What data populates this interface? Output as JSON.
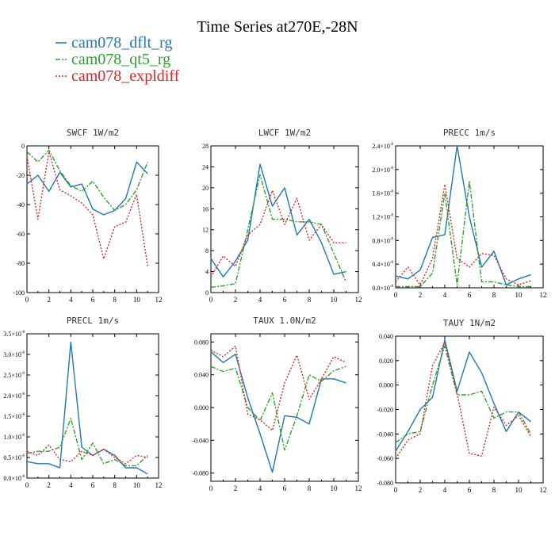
{
  "figure": {
    "title": "Time Series at270E,-28N",
    "legend": [
      {
        "name": "cam078_dflt_rg",
        "color": "#1f77b4",
        "dash": "solid"
      },
      {
        "name": "cam078_qt5_rg",
        "color": "#2ca02c",
        "dash": "dashdot"
      },
      {
        "name": "cam078_expldiff",
        "color": "#d62728",
        "dash": "dotted"
      }
    ]
  },
  "chart_data": [
    {
      "type": "line",
      "title": "SWCF   1W/m2",
      "x": [
        0,
        1,
        2,
        3,
        4,
        5,
        6,
        7,
        8,
        9,
        10,
        11
      ],
      "xlim": [
        0,
        12
      ],
      "xticks": [
        "0",
        "2",
        "4",
        "6",
        "8",
        "10",
        "12"
      ],
      "ylim": [
        -100,
        0
      ],
      "yticks": [
        {
          "value": -100,
          "label": "-100"
        },
        {
          "value": -80,
          "label": "-80"
        },
        {
          "value": -60,
          "label": "-60"
        },
        {
          "value": -40,
          "label": "-40"
        },
        {
          "value": -20,
          "label": "-20"
        },
        {
          "value": 0,
          "label": "0"
        }
      ],
      "series": [
        {
          "name": "cam078_dflt_rg",
          "values": [
            -26,
            -20,
            -31,
            -18,
            -28,
            -26,
            -43,
            -47,
            -44,
            -36,
            -11,
            -19
          ]
        },
        {
          "name": "cam078_qt5_rg",
          "values": [
            -4,
            -11,
            -3,
            -17,
            -27,
            -31,
            -24,
            -35,
            -44,
            -40,
            -30,
            -11
          ]
        },
        {
          "name": "cam078_expldiff",
          "values": [
            -7,
            -50,
            -4,
            -30,
            -34,
            -39,
            -47,
            -77,
            -55,
            -52,
            -33,
            -82
          ]
        }
      ]
    },
    {
      "type": "line",
      "title": "LWCF   1W/m2",
      "x": [
        0,
        1,
        2,
        3,
        4,
        5,
        6,
        7,
        8,
        9,
        10,
        11
      ],
      "xlim": [
        0,
        12
      ],
      "xticks": [
        "0",
        "2",
        "4",
        "6",
        "8",
        "10",
        "12"
      ],
      "ylim": [
        0,
        28
      ],
      "yticks": [
        {
          "value": 0,
          "label": "0"
        },
        {
          "value": 4,
          "label": "4"
        },
        {
          "value": 8,
          "label": "8"
        },
        {
          "value": 12,
          "label": "12"
        },
        {
          "value": 16,
          "label": "16"
        },
        {
          "value": 20,
          "label": "20"
        },
        {
          "value": 24,
          "label": "24"
        },
        {
          "value": 28,
          "label": "28"
        }
      ],
      "series": [
        {
          "name": "cam078_dflt_rg",
          "values": [
            6.5,
            3,
            6,
            10,
            24.5,
            16.5,
            20,
            11,
            14,
            9.5,
            3.5,
            4
          ]
        },
        {
          "name": "cam078_qt5_rg",
          "values": [
            1,
            1.3,
            1.7,
            12,
            22.5,
            14,
            14,
            13.5,
            13.5,
            13,
            7.5,
            2
          ]
        },
        {
          "name": "cam078_expldiff",
          "values": [
            3,
            7,
            5,
            11,
            13,
            19.5,
            13,
            18,
            10,
            13,
            9.5,
            9.5
          ]
        }
      ]
    },
    {
      "type": "line",
      "title": "PRECC   1m/s",
      "x": [
        0,
        1,
        2,
        3,
        4,
        5,
        6,
        7,
        8,
        9,
        10,
        11
      ],
      "xlim": [
        0,
        12
      ],
      "xticks": [
        "0",
        "2",
        "4",
        "6",
        "8",
        "10",
        "12"
      ],
      "ylim": [
        0,
        2.4
      ],
      "yticks": [
        {
          "value": 0,
          "label": "0.0×10",
          "exp": "-8"
        },
        {
          "value": 0.4,
          "label": "0.4×10",
          "exp": "-8"
        },
        {
          "value": 0.8,
          "label": "0.8×10",
          "exp": "-8"
        },
        {
          "value": 1.2,
          "label": "1.2×10",
          "exp": "-8"
        },
        {
          "value": 1.6,
          "label": "1.6×10",
          "exp": "-8"
        },
        {
          "value": 2.0,
          "label": "2.0×10",
          "exp": "-8"
        },
        {
          "value": 2.4,
          "label": "2.4×10",
          "exp": "-8"
        }
      ],
      "series": [
        {
          "name": "cam078_dflt_rg",
          "values": [
            0.2,
            0.15,
            0.3,
            0.85,
            0.9,
            2.4,
            1.2,
            0.35,
            0.62,
            0.05,
            0.15,
            0.22
          ]
        },
        {
          "name": "cam078_qt5_rg",
          "values": [
            0.02,
            0.02,
            0.02,
            0.25,
            1.6,
            0.05,
            1.8,
            0.1,
            0.1,
            0.05,
            0.02,
            0.02
          ]
        },
        {
          "name": "cam078_expldiff",
          "values": [
            0.1,
            0.35,
            0.05,
            0.5,
            1.75,
            0.5,
            0.35,
            0.58,
            0.55,
            0.15,
            0.05,
            0.12
          ]
        }
      ]
    },
    {
      "type": "line",
      "title": "PRECL   1m/s",
      "x": [
        0,
        1,
        2,
        3,
        4,
        5,
        6,
        7,
        8,
        9,
        10,
        11
      ],
      "xlim": [
        0,
        12
      ],
      "xticks": [
        "0",
        "2",
        "4",
        "6",
        "8",
        "10",
        "12"
      ],
      "ylim": [
        0,
        3.5
      ],
      "yticks": [
        {
          "value": 0,
          "label": "0.0×10",
          "exp": "-8"
        },
        {
          "value": 0.5,
          "label": "0.5×10",
          "exp": "-8"
        },
        {
          "value": 1.0,
          "label": "1.0×10",
          "exp": "-8"
        },
        {
          "value": 1.5,
          "label": "1.5×10",
          "exp": "-8"
        },
        {
          "value": 2.0,
          "label": "2.0×10",
          "exp": "-8"
        },
        {
          "value": 2.5,
          "label": "2.5×10",
          "exp": "-8"
        },
        {
          "value": 3.0,
          "label": "3.0×10",
          "exp": "-8"
        },
        {
          "value": 3.5,
          "label": "3.5×10",
          "exp": "-8"
        }
      ],
      "series": [
        {
          "name": "cam078_dflt_rg",
          "values": [
            0.4,
            0.35,
            0.35,
            0.25,
            3.3,
            0.75,
            0.55,
            0.7,
            0.55,
            0.25,
            0.25,
            0.1
          ]
        },
        {
          "name": "cam078_qt5_rg",
          "values": [
            0.6,
            0.65,
            0.65,
            0.75,
            1.45,
            0.45,
            0.85,
            0.35,
            0.45,
            0.3,
            0.3,
            0.55
          ]
        },
        {
          "name": "cam078_expldiff",
          "values": [
            0.65,
            0.55,
            0.8,
            0.45,
            0.4,
            0.65,
            0.55,
            0.7,
            0.5,
            0.35,
            0.55,
            0.5
          ]
        }
      ]
    },
    {
      "type": "line",
      "title": "TAUX   1.0N/m2",
      "x": [
        0,
        1,
        2,
        3,
        4,
        5,
        6,
        7,
        8,
        9,
        10,
        11
      ],
      "xlim": [
        0,
        12
      ],
      "xticks": [
        "0",
        "2",
        "4",
        "6",
        "8",
        "10",
        "12"
      ],
      "ylim": [
        -0.09,
        0.09
      ],
      "yticks": [
        {
          "value": -0.08,
          "label": "-0.080"
        },
        {
          "value": -0.04,
          "label": "-0.040"
        },
        {
          "value": 0.0,
          "label": "0.000"
        },
        {
          "value": 0.04,
          "label": "0.040"
        },
        {
          "value": 0.08,
          "label": "0.080"
        }
      ],
      "series": [
        {
          "name": "cam078_dflt_rg",
          "values": [
            0.068,
            0.055,
            0.065,
            0.012,
            -0.032,
            -0.079,
            -0.01,
            -0.012,
            -0.02,
            0.035,
            0.035,
            0.03
          ]
        },
        {
          "name": "cam078_qt5_rg",
          "values": [
            0.05,
            0.044,
            0.048,
            0.0,
            -0.016,
            0.018,
            -0.052,
            -0.01,
            0.04,
            0.032,
            0.045,
            0.05
          ]
        },
        {
          "name": "cam078_expldiff",
          "values": [
            0.07,
            0.062,
            0.075,
            -0.008,
            -0.015,
            -0.028,
            0.03,
            0.064,
            0.01,
            0.035,
            0.062,
            0.055
          ]
        }
      ]
    },
    {
      "type": "line",
      "title": "TAUY   1N/m2",
      "x": [
        0,
        1,
        2,
        3,
        4,
        5,
        6,
        7,
        8,
        9,
        10,
        11
      ],
      "xlim": [
        0,
        12
      ],
      "xticks": [
        "0",
        "2",
        "4",
        "6",
        "8",
        "10",
        "12"
      ],
      "ylim": [
        -0.08,
        0.04
      ],
      "yticks": [
        {
          "value": -0.08,
          "label": "-0.080"
        },
        {
          "value": -0.06,
          "label": "-0.060"
        },
        {
          "value": -0.04,
          "label": "-0.040"
        },
        {
          "value": -0.02,
          "label": "-0.020"
        },
        {
          "value": 0.0,
          "label": "0.000"
        },
        {
          "value": 0.02,
          "label": "0.020"
        },
        {
          "value": 0.04,
          "label": "0.040"
        }
      ],
      "series": [
        {
          "name": "cam078_dflt_rg",
          "values": [
            -0.054,
            -0.038,
            -0.02,
            -0.01,
            0.037,
            -0.005,
            0.027,
            0.01,
            -0.015,
            -0.038,
            -0.022,
            -0.03
          ]
        },
        {
          "name": "cam078_qt5_rg",
          "values": [
            -0.047,
            -0.04,
            -0.038,
            0.0,
            0.032,
            -0.008,
            -0.008,
            -0.005,
            -0.027,
            -0.022,
            -0.022,
            -0.04
          ]
        },
        {
          "name": "cam078_expldiff",
          "values": [
            -0.06,
            -0.045,
            -0.04,
            0.016,
            0.035,
            -0.007,
            -0.056,
            -0.058,
            -0.018,
            -0.033,
            -0.025,
            -0.042
          ]
        }
      ]
    }
  ]
}
